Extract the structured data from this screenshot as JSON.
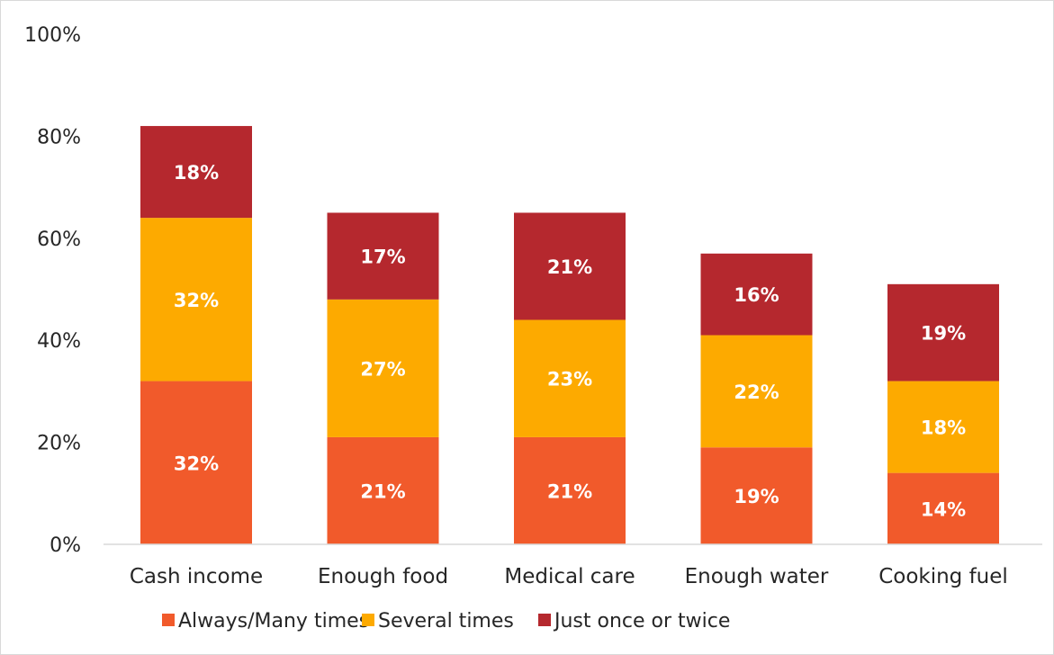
{
  "chart_data": {
    "type": "bar",
    "stacked": true,
    "categories": [
      "Cash income",
      "Enough food",
      "Medical care",
      "Enough water",
      "Cooking fuel"
    ],
    "series": [
      {
        "name": "Always/Many times",
        "values": [
          32,
          21,
          21,
          19,
          14
        ],
        "color": "#f15a2b"
      },
      {
        "name": "Several times",
        "values": [
          32,
          27,
          23,
          22,
          18
        ],
        "color": "#fdaa00"
      },
      {
        "name": "Just once or twice",
        "values": [
          18,
          17,
          21,
          16,
          19
        ],
        "color": "#b5282e"
      }
    ],
    "value_suffix": "%",
    "ylim": [
      0,
      100
    ],
    "yticks": [
      "0%",
      "20%",
      "40%",
      "60%",
      "80%",
      "100%"
    ],
    "grid": false,
    "legend": "bottom"
  }
}
